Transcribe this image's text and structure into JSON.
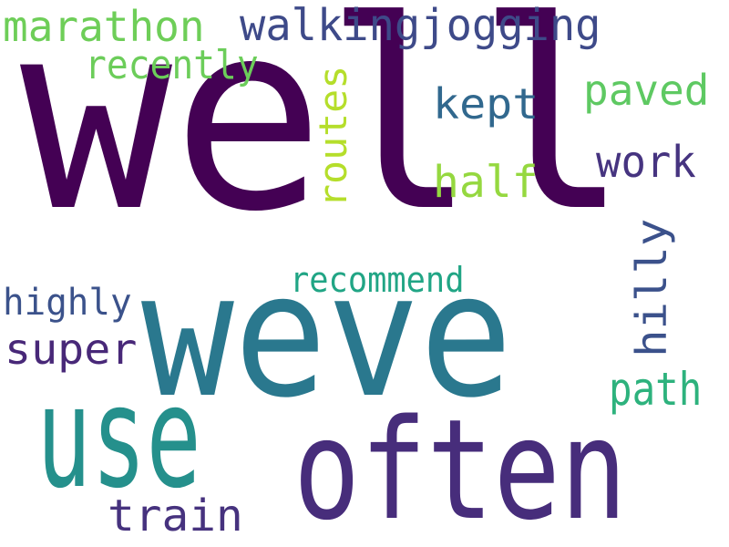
{
  "words": [
    {
      "text": "well",
      "color": "#440154"
    },
    {
      "text": "weve",
      "color": "#2a788e"
    },
    {
      "text": "often",
      "color": "#472d7b"
    },
    {
      "text": "use",
      "color": "#25908c"
    },
    {
      "text": "walkingjogging",
      "color": "#3e4a89"
    },
    {
      "text": "marathon",
      "color": "#6ece58"
    },
    {
      "text": "recently",
      "color": "#6ccd5a"
    },
    {
      "text": "routes",
      "color": "#b5de2b"
    },
    {
      "text": "kept",
      "color": "#31688e"
    },
    {
      "text": "paved",
      "color": "#5ec962"
    },
    {
      "text": "work",
      "color": "#463480"
    },
    {
      "text": "half",
      "color": "#95d840"
    },
    {
      "text": "hilly",
      "color": "#3b518b"
    },
    {
      "text": "recommend",
      "color": "#21a585"
    },
    {
      "text": "highly",
      "color": "#3b528b"
    },
    {
      "text": "super",
      "color": "#482878"
    },
    {
      "text": "path",
      "color": "#2db27d"
    },
    {
      "text": "train",
      "color": "#46327e"
    }
  ]
}
